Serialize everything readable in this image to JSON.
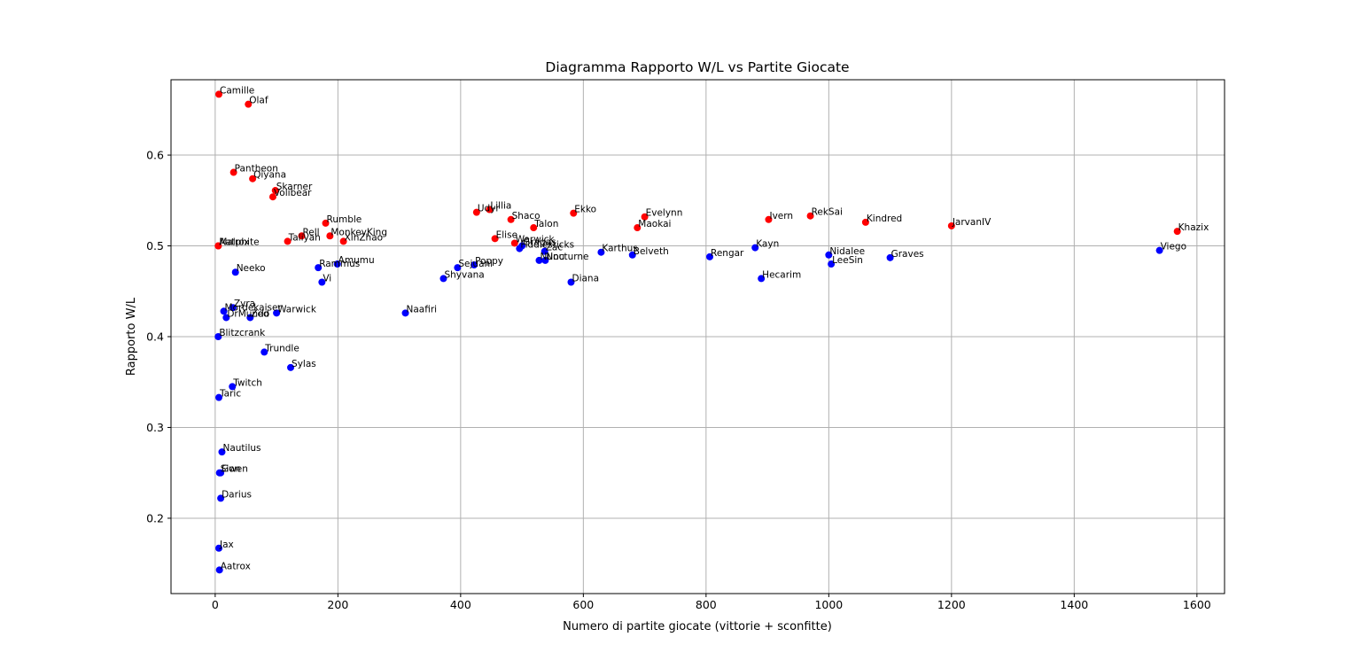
{
  "chart_data": {
    "type": "scatter",
    "title": "Diagramma Rapporto W/L vs Partite Giocate",
    "xlabel": "Numero di partite giocate (vittorie + sconfitte)",
    "ylabel": "Rapporto W/L",
    "xlim": [
      -72,
      1645
    ],
    "ylim": [
      0.117,
      0.683
    ],
    "xticks": [
      0,
      200,
      400,
      600,
      800,
      1000,
      1200,
      1400,
      1600
    ],
    "yticks": [
      0.2,
      0.3,
      0.4,
      0.5,
      0.6
    ],
    "xtick_labels": [
      "0",
      "200",
      "400",
      "600",
      "800",
      "1000",
      "1200",
      "1400",
      "1600"
    ],
    "ytick_labels": [
      "0.2",
      "0.3",
      "0.4",
      "0.5",
      "0.6"
    ],
    "grid": true,
    "colors": {
      "red": "#ff0000",
      "blue": "#0000ff"
    },
    "points": [
      {
        "label": "Camille",
        "x": 6,
        "y": 0.667,
        "color": "red"
      },
      {
        "label": "Olaf",
        "x": 54,
        "y": 0.656,
        "color": "red"
      },
      {
        "label": "Pantheon",
        "x": 30,
        "y": 0.581,
        "color": "red"
      },
      {
        "label": "Qiyana",
        "x": 61,
        "y": 0.574,
        "color": "red"
      },
      {
        "label": "Skarner",
        "x": 98,
        "y": 0.561,
        "color": "red"
      },
      {
        "label": "Volibear",
        "x": 94,
        "y": 0.554,
        "color": "red"
      },
      {
        "label": "Rumble",
        "x": 180,
        "y": 0.525,
        "color": "red"
      },
      {
        "label": "Rell",
        "x": 141,
        "y": 0.511,
        "color": "red"
      },
      {
        "label": "MonkeyKing",
        "x": 187,
        "y": 0.511,
        "color": "red"
      },
      {
        "label": "Taliyah",
        "x": 118,
        "y": 0.505,
        "color": "red"
      },
      {
        "label": "XinZhao",
        "x": 209,
        "y": 0.505,
        "color": "red"
      },
      {
        "label": "Aatrox",
        "x": 5,
        "y": 0.5,
        "color": "red"
      },
      {
        "label": "Malphite",
        "x": 5,
        "y": 0.5,
        "color": "red"
      },
      {
        "label": "Udyr",
        "x": 426,
        "y": 0.537,
        "color": "red"
      },
      {
        "label": "Lillia",
        "x": 447,
        "y": 0.54,
        "color": "red"
      },
      {
        "label": "Shaco",
        "x": 482,
        "y": 0.529,
        "color": "red"
      },
      {
        "label": "Talon",
        "x": 519,
        "y": 0.52,
        "color": "red"
      },
      {
        "label": "Elise",
        "x": 456,
        "y": 0.508,
        "color": "red"
      },
      {
        "label": "Warwick",
        "x": 488,
        "y": 0.503,
        "color": "red"
      },
      {
        "label": "Ekko",
        "x": 584,
        "y": 0.536,
        "color": "red"
      },
      {
        "label": "Evelynn",
        "x": 700,
        "y": 0.532,
        "color": "red"
      },
      {
        "label": "Maokai",
        "x": 688,
        "y": 0.52,
        "color": "red"
      },
      {
        "label": "Ivern",
        "x": 902,
        "y": 0.529,
        "color": "red"
      },
      {
        "label": "RekSai",
        "x": 970,
        "y": 0.533,
        "color": "red"
      },
      {
        "label": "Kindred",
        "x": 1060,
        "y": 0.526,
        "color": "red"
      },
      {
        "label": "JarvanIV",
        "x": 1200,
        "y": 0.522,
        "color": "red"
      },
      {
        "label": "Khazix",
        "x": 1568,
        "y": 0.516,
        "color": "red"
      },
      {
        "label": "Neeko",
        "x": 33,
        "y": 0.471,
        "color": "blue"
      },
      {
        "label": "Zyra",
        "x": 29,
        "y": 0.432,
        "color": "blue"
      },
      {
        "label": "Mordekaiser",
        "x": 14,
        "y": 0.428,
        "color": "blue"
      },
      {
        "label": "DrMundo",
        "x": 18,
        "y": 0.421,
        "color": "blue"
      },
      {
        "label": "Zed",
        "x": 57,
        "y": 0.421,
        "color": "blue"
      },
      {
        "label": "Warwick",
        "x": 100,
        "y": 0.426,
        "color": "blue"
      },
      {
        "label": "Blitzcrank",
        "x": 5,
        "y": 0.4,
        "color": "blue"
      },
      {
        "label": "Trundle",
        "x": 80,
        "y": 0.383,
        "color": "blue"
      },
      {
        "label": "Sylas",
        "x": 123,
        "y": 0.366,
        "color": "blue"
      },
      {
        "label": "Twitch",
        "x": 28,
        "y": 0.345,
        "color": "blue"
      },
      {
        "label": "Taric",
        "x": 6,
        "y": 0.333,
        "color": "blue"
      },
      {
        "label": "Nautilus",
        "x": 11,
        "y": 0.273,
        "color": "blue"
      },
      {
        "label": "Sion",
        "x": 7,
        "y": 0.25,
        "color": "blue"
      },
      {
        "label": "Gwen",
        "x": 9,
        "y": 0.25,
        "color": "blue"
      },
      {
        "label": "Darius",
        "x": 9,
        "y": 0.222,
        "color": "blue"
      },
      {
        "label": "Jax",
        "x": 6,
        "y": 0.167,
        "color": "blue"
      },
      {
        "label": "Aatrox",
        "x": 7,
        "y": 0.143,
        "color": "blue"
      },
      {
        "label": "Rammus",
        "x": 168,
        "y": 0.476,
        "color": "blue"
      },
      {
        "label": "Amumu",
        "x": 199,
        "y": 0.48,
        "color": "blue"
      },
      {
        "label": "Vi",
        "x": 174,
        "y": 0.46,
        "color": "blue"
      },
      {
        "label": "Naafiri",
        "x": 310,
        "y": 0.426,
        "color": "blue"
      },
      {
        "label": "Shyvana",
        "x": 372,
        "y": 0.464,
        "color": "blue"
      },
      {
        "label": "Sejuani",
        "x": 395,
        "y": 0.476,
        "color": "blue"
      },
      {
        "label": "Poppy",
        "x": 422,
        "y": 0.479,
        "color": "blue"
      },
      {
        "label": "Fiddlesticks",
        "x": 496,
        "y": 0.497,
        "color": "blue"
      },
      {
        "label": "Gragas",
        "x": 500,
        "y": 0.5,
        "color": "blue"
      },
      {
        "label": "Zac",
        "x": 537,
        "y": 0.494,
        "color": "blue"
      },
      {
        "label": "Nunu",
        "x": 528,
        "y": 0.484,
        "color": "blue"
      },
      {
        "label": "Nocturne",
        "x": 538,
        "y": 0.484,
        "color": "blue"
      },
      {
        "label": "Diana",
        "x": 580,
        "y": 0.46,
        "color": "blue"
      },
      {
        "label": "Karthus",
        "x": 629,
        "y": 0.493,
        "color": "blue"
      },
      {
        "label": "Belveth",
        "x": 680,
        "y": 0.49,
        "color": "blue"
      },
      {
        "label": "Rengar",
        "x": 806,
        "y": 0.488,
        "color": "blue"
      },
      {
        "label": "Kayn",
        "x": 880,
        "y": 0.498,
        "color": "blue"
      },
      {
        "label": "Hecarim",
        "x": 890,
        "y": 0.464,
        "color": "blue"
      },
      {
        "label": "Nidalee",
        "x": 1000,
        "y": 0.49,
        "color": "blue"
      },
      {
        "label": "LeeSin",
        "x": 1004,
        "y": 0.48,
        "color": "blue"
      },
      {
        "label": "Graves",
        "x": 1100,
        "y": 0.487,
        "color": "blue"
      },
      {
        "label": "Viego",
        "x": 1539,
        "y": 0.495,
        "color": "blue"
      }
    ]
  }
}
